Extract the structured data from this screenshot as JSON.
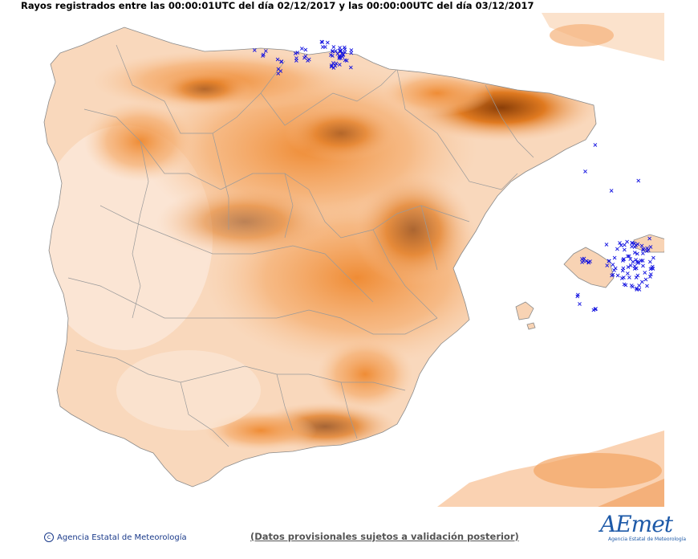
{
  "header": {
    "title": "Rayos registrados entre las 00:00:01UTC del día 02/12/2017 y las 00:00:00UTC del día 03/12/2017"
  },
  "footer": {
    "copyright": "Agencia Estatal de Meteorología",
    "note": "(Datos provisionales sujetos a validación posterior)"
  },
  "logo": {
    "wordmark": "AEmet",
    "subtitle": "Agencia Estatal de Meteorología"
  },
  "colors": {
    "lightning_marker": "#1010e0",
    "terrain_low": "#fbe7d6",
    "terrain_mid": "#f5a866",
    "terrain_high": "#8a3e08",
    "sea": "#ffffff",
    "borders": "#8a8a8a"
  },
  "map": {
    "marker_symbol": "×",
    "lightning_groups": [
      {
        "area": "Costa Cantábrica (País Vasco / Cantabria)",
        "approx_count": 60
      },
      {
        "area": "Mallorca y Menorca",
        "approx_count": 90
      },
      {
        "area": "Mar Balear",
        "approx_count": 6
      }
    ]
  }
}
